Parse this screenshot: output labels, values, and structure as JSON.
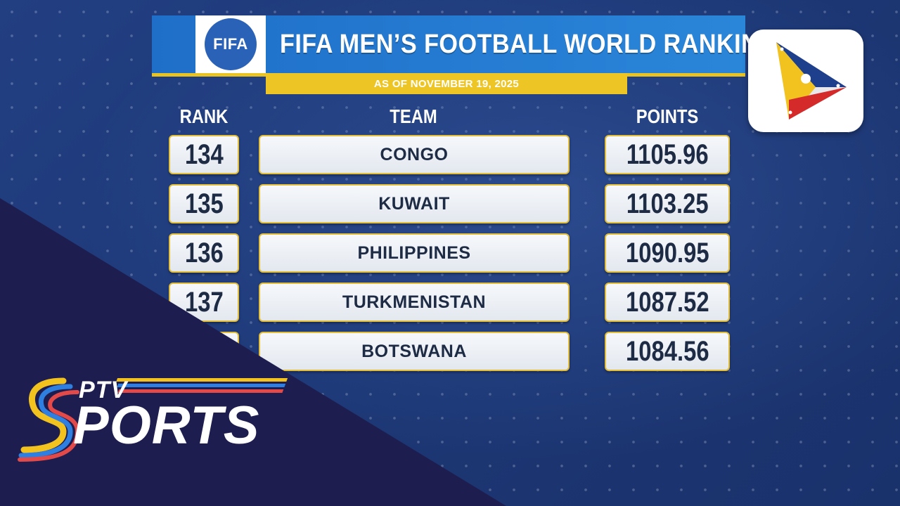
{
  "header": {
    "logo_text": "FIFA",
    "title": "FIFA MEN’S FOOTBALL WORLD RANKINGS",
    "date": "AS OF NOVEMBER 19, 2025"
  },
  "columns": {
    "rank": "RANK",
    "team": "TEAM",
    "points": "POINTS"
  },
  "rows": [
    {
      "rank": "134",
      "team": "CONGO",
      "points": "1105.96"
    },
    {
      "rank": "135",
      "team": "KUWAIT",
      "points": "1103.25"
    },
    {
      "rank": "136",
      "team": "PHILIPPINES",
      "points": "1090.95"
    },
    {
      "rank": "137",
      "team": "TURKMENISTAN",
      "points": "1087.52"
    },
    {
      "rank": "",
      "team": "BOTSWANA",
      "points": "1084.56"
    }
  ],
  "brand": {
    "top_text": "PTV",
    "main_text": "PORTS",
    "logo_icon": "ptv-network-logo-icon"
  },
  "colors": {
    "background": "#1f3a78",
    "header_blue": "#2a86d9",
    "accent_yellow": "#edc524",
    "wedge_dark": "#1e1d4f",
    "text_dark": "#1e2b45"
  }
}
